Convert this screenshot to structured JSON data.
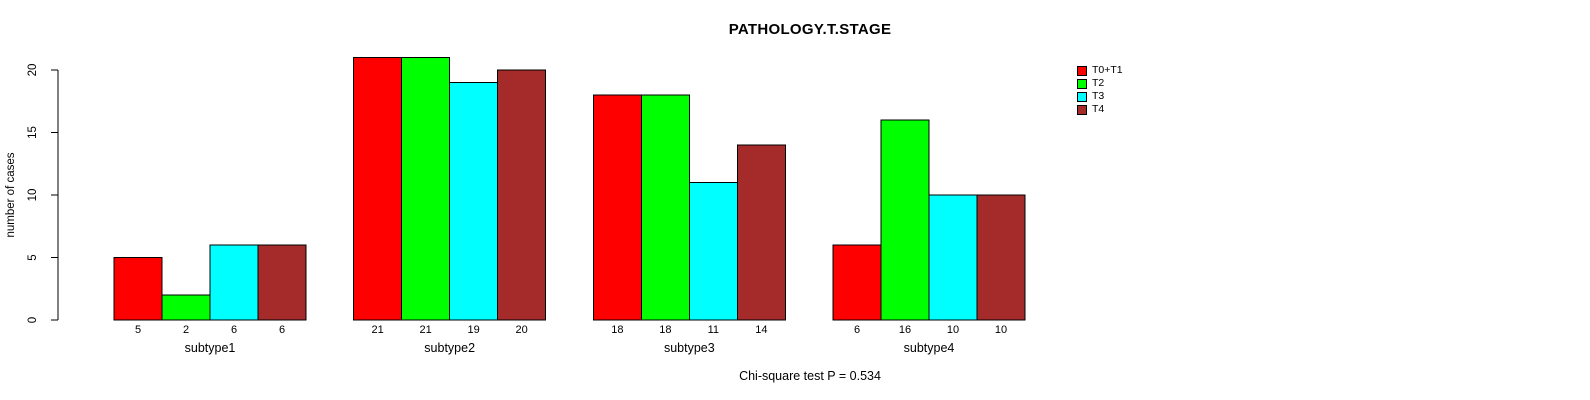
{
  "title": "PATHOLOGY.T.STAGE",
  "footer": {
    "text": "Chi-square test P = 0.534"
  },
  "chart_data": {
    "type": "bar",
    "grouped": true,
    "title": "PATHOLOGY.T.STAGE",
    "categories": [
      "subtype1",
      "subtype2",
      "subtype3",
      "subtype4"
    ],
    "series": [
      {
        "name": "T0+T1",
        "color": "#FF0000",
        "values": [
          5,
          21,
          18,
          6
        ]
      },
      {
        "name": "T2",
        "color": "#00FF00",
        "values": [
          2,
          21,
          18,
          16
        ]
      },
      {
        "name": "T3",
        "color": "#00FFFF",
        "values": [
          6,
          19,
          11,
          10
        ]
      },
      {
        "name": "T4",
        "color": "#A52A2A",
        "values": [
          6,
          20,
          14,
          10
        ]
      }
    ],
    "xlabel": "",
    "ylabel": "number of cases",
    "yticks": [
      0,
      5,
      10,
      15,
      20
    ],
    "ylim": [
      0,
      21
    ],
    "bar_value_labels_shown": true,
    "grid": false,
    "legend_position": "top-right",
    "annotation": "Chi-square test P = 0.534"
  }
}
